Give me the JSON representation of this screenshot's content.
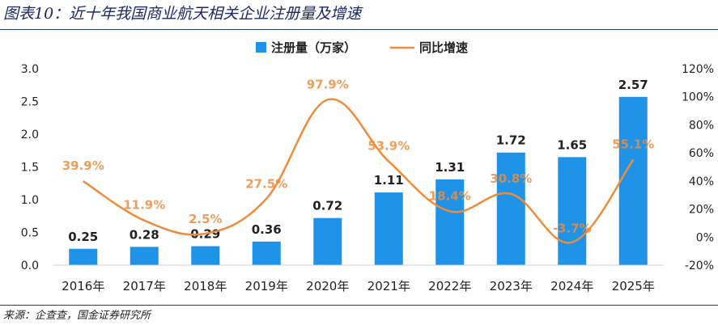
{
  "figure": {
    "title": "图表10：近十年我国商业航天相关企业注册量及增速",
    "source": "来源：企查查，国金证券研究所"
  },
  "colors": {
    "bar": "#1f93e8",
    "line": "#ef8c3c",
    "axis_text": "#222222",
    "title": "#1a2a6a"
  },
  "chart_data": {
    "type": "bar",
    "categories": [
      "2016年",
      "2017年",
      "2018年",
      "2019年",
      "2020年",
      "2021年",
      "2022年",
      "2023年",
      "2024年",
      "2025年"
    ],
    "series": [
      {
        "name": "注册量（万家）",
        "type": "bar",
        "axis": "left",
        "values": [
          0.25,
          0.28,
          0.29,
          0.36,
          0.72,
          1.11,
          1.31,
          1.72,
          1.65,
          2.57
        ],
        "labels": [
          "0.25",
          "0.28",
          "0.29",
          "0.36",
          "0.72",
          "1.11",
          "1.31",
          "1.72",
          "1.65",
          "2.57"
        ]
      },
      {
        "name": "同比增速",
        "type": "line",
        "axis": "right",
        "values": [
          39.9,
          11.9,
          2.5,
          27.5,
          97.9,
          53.9,
          18.4,
          30.8,
          -3.7,
          55.1
        ],
        "labels": [
          "39.9%",
          "11.9%",
          "2.5%",
          "27.5%",
          "97.9%",
          "53.9%",
          "18.4%",
          "30.8%",
          "-3.7%",
          "55.1%"
        ]
      }
    ],
    "y_left": {
      "range": [
        0,
        3.0
      ],
      "ticks": [
        "0.0",
        "0.5",
        "1.0",
        "1.5",
        "2.0",
        "2.5",
        "3.0"
      ],
      "tick_values": [
        0,
        0.5,
        1.0,
        1.5,
        2.0,
        2.5,
        3.0
      ]
    },
    "y_right": {
      "range": [
        -20,
        120
      ],
      "ticks": [
        "-20%",
        "0%",
        "20%",
        "40%",
        "60%",
        "80%",
        "100%",
        "120%"
      ],
      "tick_values": [
        -20,
        0,
        20,
        40,
        60,
        80,
        100,
        120
      ]
    },
    "legend_position": "top",
    "grid": false
  }
}
